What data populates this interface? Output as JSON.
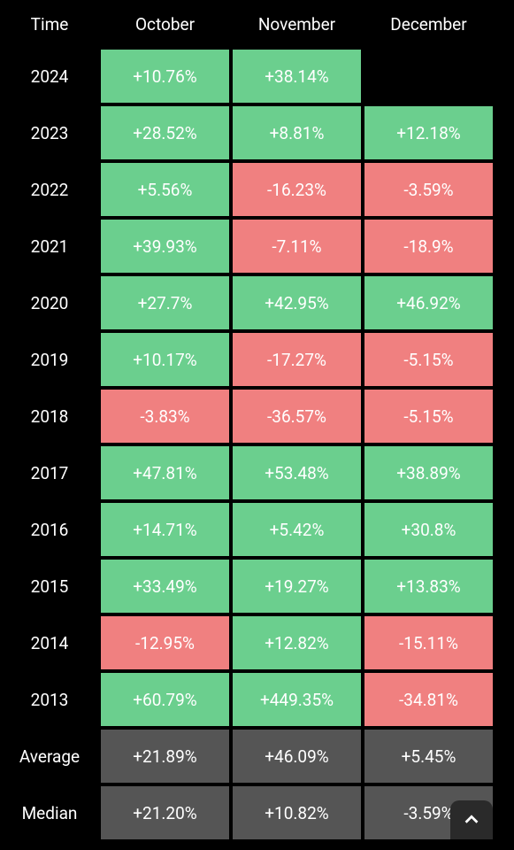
{
  "table": {
    "type": "table",
    "background_color": "#000000",
    "text_color": "#ffffff",
    "positive_color": "#6bcf8e",
    "negative_color": "#f08080",
    "summary_color": "#555555",
    "font_size": 19,
    "cell_border_color": "#000000",
    "columns": [
      "Time",
      "October",
      "November",
      "December"
    ],
    "rows": [
      {
        "label": "2024",
        "cells": [
          {
            "text": "+10.76%",
            "kind": "pos"
          },
          {
            "text": "+38.14%",
            "kind": "pos"
          },
          null
        ]
      },
      {
        "label": "2023",
        "cells": [
          {
            "text": "+28.52%",
            "kind": "pos"
          },
          {
            "text": "+8.81%",
            "kind": "pos"
          },
          {
            "text": "+12.18%",
            "kind": "pos"
          }
        ]
      },
      {
        "label": "2022",
        "cells": [
          {
            "text": "+5.56%",
            "kind": "pos"
          },
          {
            "text": "-16.23%",
            "kind": "neg"
          },
          {
            "text": "-3.59%",
            "kind": "neg"
          }
        ]
      },
      {
        "label": "2021",
        "cells": [
          {
            "text": "+39.93%",
            "kind": "pos"
          },
          {
            "text": "-7.11%",
            "kind": "neg"
          },
          {
            "text": "-18.9%",
            "kind": "neg"
          }
        ]
      },
      {
        "label": "2020",
        "cells": [
          {
            "text": "+27.7%",
            "kind": "pos"
          },
          {
            "text": "+42.95%",
            "kind": "pos"
          },
          {
            "text": "+46.92%",
            "kind": "pos"
          }
        ]
      },
      {
        "label": "2019",
        "cells": [
          {
            "text": "+10.17%",
            "kind": "pos"
          },
          {
            "text": "-17.27%",
            "kind": "neg"
          },
          {
            "text": "-5.15%",
            "kind": "neg"
          }
        ]
      },
      {
        "label": "2018",
        "cells": [
          {
            "text": "-3.83%",
            "kind": "neg"
          },
          {
            "text": "-36.57%",
            "kind": "neg"
          },
          {
            "text": "-5.15%",
            "kind": "neg"
          }
        ]
      },
      {
        "label": "2017",
        "cells": [
          {
            "text": "+47.81%",
            "kind": "pos"
          },
          {
            "text": "+53.48%",
            "kind": "pos"
          },
          {
            "text": "+38.89%",
            "kind": "pos"
          }
        ]
      },
      {
        "label": "2016",
        "cells": [
          {
            "text": "+14.71%",
            "kind": "pos"
          },
          {
            "text": "+5.42%",
            "kind": "pos"
          },
          {
            "text": "+30.8%",
            "kind": "pos"
          }
        ]
      },
      {
        "label": "2015",
        "cells": [
          {
            "text": "+33.49%",
            "kind": "pos"
          },
          {
            "text": "+19.27%",
            "kind": "pos"
          },
          {
            "text": "+13.83%",
            "kind": "pos"
          }
        ]
      },
      {
        "label": "2014",
        "cells": [
          {
            "text": "-12.95%",
            "kind": "neg"
          },
          {
            "text": "+12.82%",
            "kind": "pos"
          },
          {
            "text": "-15.11%",
            "kind": "neg"
          }
        ]
      },
      {
        "label": "2013",
        "cells": [
          {
            "text": "+60.79%",
            "kind": "pos"
          },
          {
            "text": "+449.35%",
            "kind": "pos"
          },
          {
            "text": "-34.81%",
            "kind": "neg"
          }
        ]
      },
      {
        "label": "Average",
        "cells": [
          {
            "text": "+21.89%",
            "kind": "summary"
          },
          {
            "text": "+46.09%",
            "kind": "summary"
          },
          {
            "text": "+5.45%",
            "kind": "summary"
          }
        ]
      },
      {
        "label": "Median",
        "cells": [
          {
            "text": "+21.20%",
            "kind": "summary"
          },
          {
            "text": "+10.82%",
            "kind": "summary"
          },
          {
            "text": "-3.59%",
            "kind": "summary"
          }
        ]
      }
    ]
  },
  "scroll_top": {
    "icon": "chevron-up"
  }
}
